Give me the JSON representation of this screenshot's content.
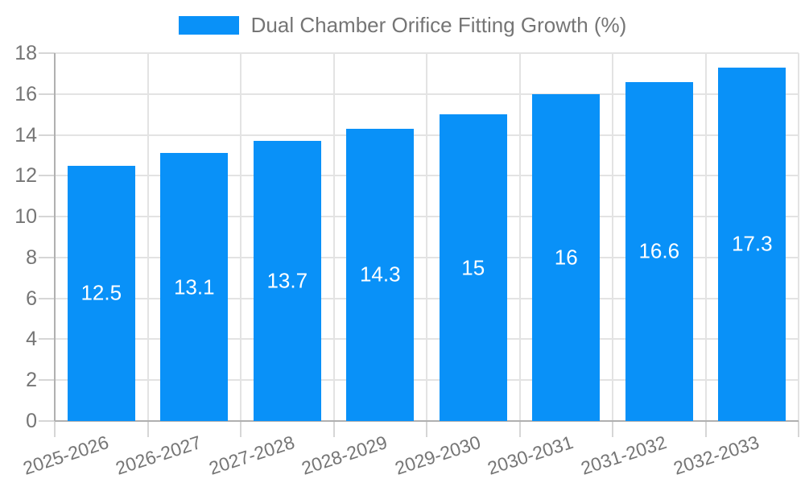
{
  "legend": {
    "label": "Dual Chamber Orifice Fitting Growth (%)"
  },
  "chart_data": {
    "type": "bar",
    "title": "",
    "series_name": "Dual Chamber Orifice Fitting Growth (%)",
    "categories": [
      "2025-2026",
      "2026-2027",
      "2027-2028",
      "2028-2029",
      "2029-2030",
      "2030-2031",
      "2031-2032",
      "2032-2033"
    ],
    "values": [
      12.5,
      13.1,
      13.7,
      14.3,
      15,
      16,
      16.6,
      17.3
    ],
    "value_labels": [
      "12.5",
      "13.1",
      "13.7",
      "14.3",
      "15",
      "16",
      "16.6",
      "17.3"
    ],
    "xlabel": "",
    "ylabel": "",
    "ylim": [
      0,
      18
    ],
    "ytick_step": 2,
    "ytick_labels": [
      "0",
      "2",
      "4",
      "6",
      "8",
      "10",
      "12",
      "14",
      "16",
      "18"
    ],
    "grid": true,
    "legend_position": "top",
    "colors": {
      "bar": "#0991f8",
      "grid": "#e3e3e3",
      "tick": "#d6d6d6",
      "axis": "#b0b0b0",
      "text": "#757575",
      "value_text": "#ffffff",
      "background": "#ffffff"
    }
  }
}
